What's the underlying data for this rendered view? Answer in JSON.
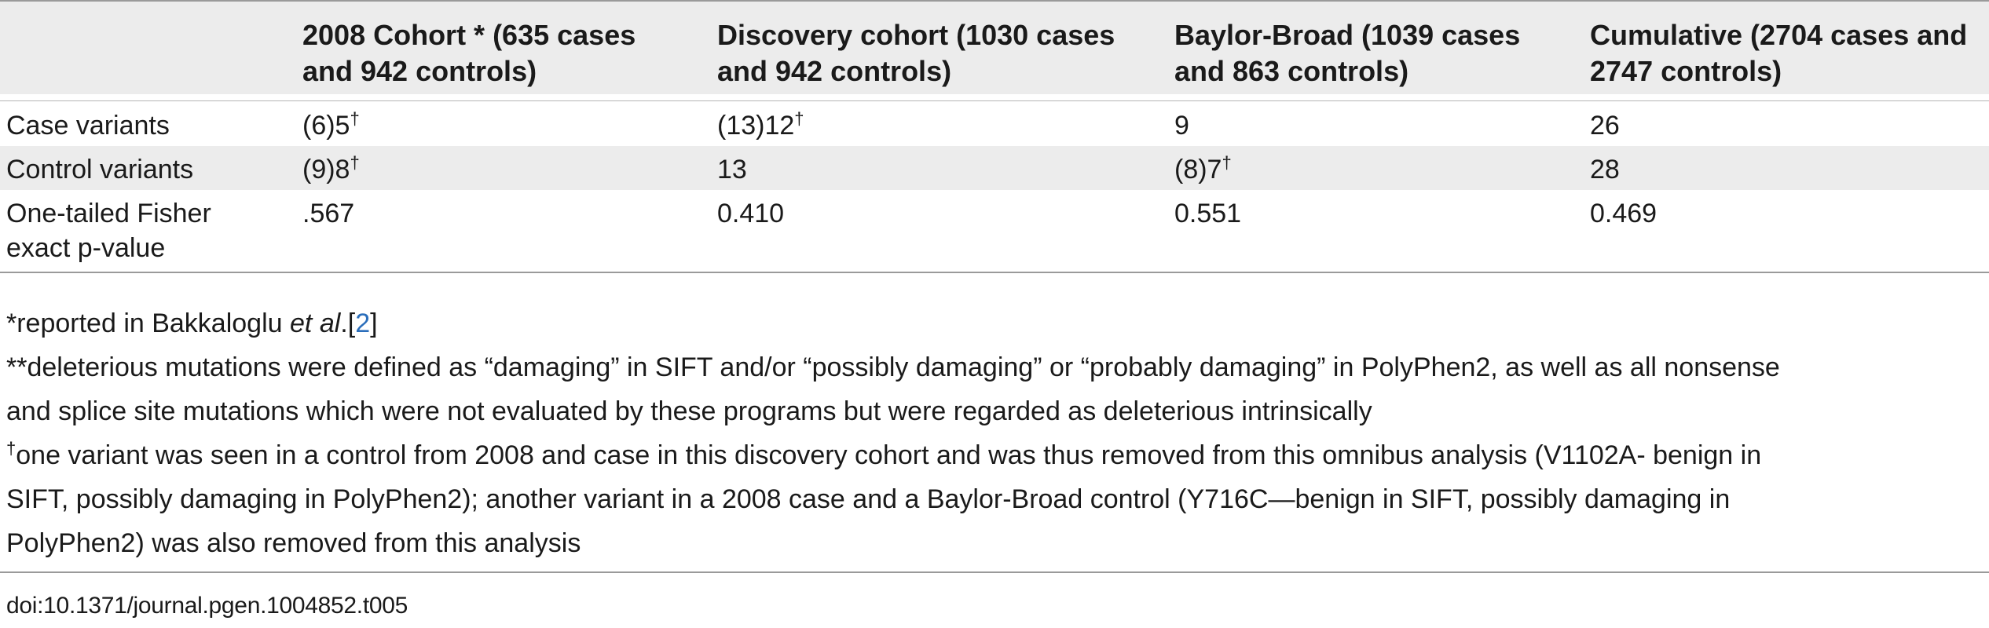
{
  "table": {
    "columns": [
      "",
      "2008 Cohort * (635 cases and 942 controls)",
      "Discovery cohort (1030 cases and 942 controls)",
      "Baylor-Broad (1039 cases and 863 controls)",
      "Cumulative (2704 cases and 2747 controls)"
    ],
    "header_lines": {
      "c1": [
        "2008 Cohort * (635 cases",
        "and 942 controls)"
      ],
      "c2": [
        "Discovery cohort (1030 cases",
        "and 942 controls)"
      ],
      "c3": [
        "Baylor-Broad (1039 cases",
        "and 863 controls)"
      ],
      "c4": [
        "Cumulative (2704 cases and",
        "2747 controls)"
      ]
    },
    "rows": [
      {
        "label": "Case variants",
        "c1": "(6)5",
        "c1_mark": "†",
        "c2": "(13)12",
        "c2_mark": "†",
        "c3": "9",
        "c4": "26"
      },
      {
        "label": "Control variants",
        "c1": "(9)8",
        "c1_mark": "†",
        "c2": "13",
        "c3": "(8)7",
        "c3_mark": "†",
        "c4": "28"
      },
      {
        "label_lines": [
          "One-tailed Fisher",
          "exact p-value"
        ],
        "c1": ".567",
        "c2": "0.410",
        "c3": "0.551",
        "c4": "0.469"
      }
    ]
  },
  "footnotes": {
    "note1_prefix": "*reported in Bakkaloglu ",
    "note1_italic": "et al",
    "note1_mid": ".[",
    "note1_ref": "2",
    "note1_end": "]",
    "note2_lines": [
      "**deleterious mutations were defined as “damaging” in SIFT and/or “possibly damaging” or “probably damaging” in PolyPhen2, as well as all nonsense",
      "and splice site mutations which were not evaluated by these programs but were regarded as deleterious intrinsically"
    ],
    "note3_mark": "†",
    "note3_lines": [
      "one variant was seen in a control from 2008 and case in this discovery cohort and was thus removed from this omnibus analysis (V1102A- benign in",
      "SIFT, possibly damaging in PolyPhen2); another variant in a 2008 case and a Baylor-Broad control (Y716C—benign in SIFT, possibly damaging in",
      "PolyPhen2) was also removed from this analysis"
    ]
  },
  "doi": "doi:10.1371/journal.pgen.1004852.t005",
  "colors": {
    "shade": "#ececec",
    "rule": "#9a9a9a",
    "link": "#2a6ebb"
  }
}
